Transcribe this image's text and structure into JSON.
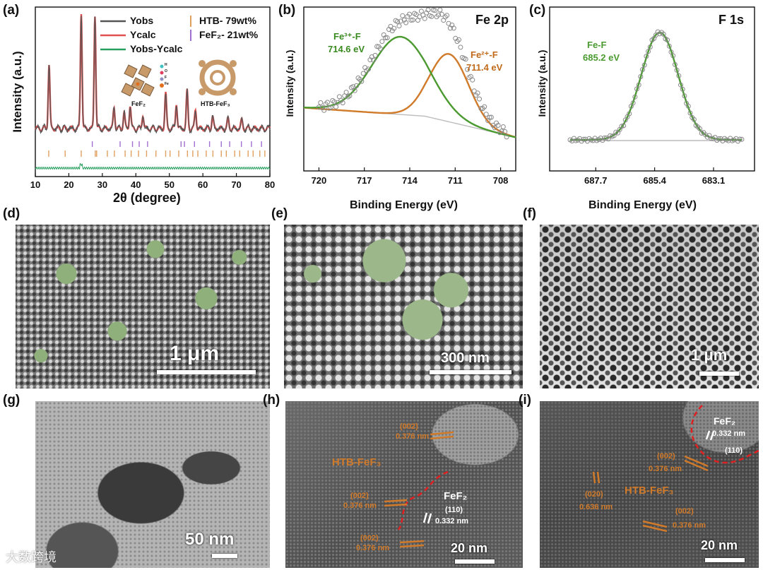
{
  "panels": {
    "a": {
      "label": "(a)",
      "ylabel": "Intensity (a.u.)",
      "xlabel": "2θ (degree)",
      "xticks": [
        "10",
        "20",
        "30",
        "40",
        "50",
        "60",
        "70",
        "80"
      ],
      "legend": {
        "yobs": "Yobs",
        "ycalc": "Ycalc",
        "diff": "Yobs-Ycalc",
        "htb": "HTB- 79wt%",
        "fef2": "FeF₂- 21wt%"
      },
      "struct_labels": {
        "fef2": "FeF₂",
        "htb": "HTB-FeF₃"
      },
      "atom_legend": [
        "H",
        "O",
        "F",
        "Fe"
      ]
    },
    "b": {
      "label": "(b)",
      "title": "Fe 2p",
      "ylabel": "Intensity (a.u.)",
      "xlabel": "Binding Energy (eV)",
      "xticks": [
        "720",
        "717",
        "714",
        "711",
        "708"
      ],
      "peak1_name": "Fe³⁺-F",
      "peak1_energy": "714.6 eV",
      "peak2_name": "Fe²⁺-F",
      "peak2_energy": "711.4 eV"
    },
    "c": {
      "label": "(c)",
      "title": "F 1s",
      "ylabel": "Intensity (a.u.)",
      "xlabel": "Binding Energy (eV)",
      "xticks": [
        "687.7",
        "685.4",
        "683.1"
      ],
      "peak_name": "Fe-F",
      "peak_energy": "685.2 eV"
    },
    "d": {
      "label": "(d)",
      "scale": "1 μm"
    },
    "e": {
      "label": "(e)",
      "scale": "300 nm"
    },
    "f": {
      "label": "(f)",
      "scale": "1 μm"
    },
    "g": {
      "label": "(g)",
      "scale": "50 nm"
    },
    "h": {
      "label": "(h)",
      "scale": "20 nm",
      "htb": "HTB-FeF₃",
      "fef2": "FeF₂",
      "plane002": "(002)",
      "d0376": "0.376 nm",
      "plane110": "(110)",
      "d0332": "0.332 nm"
    },
    "i": {
      "label": "(i)",
      "scale": "20 nm",
      "htb": "HTB-FeF₃",
      "fef2": "FeF₂",
      "plane002": "(002)",
      "plane020": "(020)",
      "plane110": "(110)",
      "d0376": "0.376 nm",
      "d0332": "0.332 nm",
      "d0636": "0.636 nm"
    }
  },
  "watermark": "大数跨境",
  "chart_data": [
    {
      "type": "line",
      "panel": "a",
      "xlabel": "2θ (degree)",
      "ylabel": "Intensity (a.u.)",
      "xlim": [
        10,
        80
      ],
      "series": [
        {
          "name": "Yobs",
          "color": "#555555"
        },
        {
          "name": "Ycalc",
          "color": "#e05050"
        },
        {
          "name": "Yobs-Ycalc",
          "color": "#2aa060"
        }
      ],
      "peaks_2theta": [
        14.1,
        23.7,
        27.8,
        33.5,
        36.5,
        38.3,
        42.1,
        48.9,
        52.1,
        55.3,
        57.8,
        62.9,
        67.5,
        71.6
      ],
      "peak_rel_intensity": [
        0.55,
        1.0,
        0.98,
        0.18,
        0.14,
        0.2,
        0.12,
        0.3,
        0.22,
        0.32,
        0.16,
        0.1,
        0.08,
        0.07
      ],
      "htb_ticks": [
        14.0,
        18.9,
        23.7,
        27.9,
        28.3,
        31.5,
        33.6,
        36.8,
        38.6,
        40.8,
        43.2,
        46.0,
        48.9,
        50.2,
        52.8,
        55.4,
        57.0,
        58.5,
        61.0,
        63.0,
        65.5,
        67.0,
        69.5,
        71.0,
        73.5,
        75.0,
        77.0,
        78.5
      ],
      "fef2_ticks": [
        27.0,
        35.3,
        39.0,
        41.0,
        43.5,
        53.5,
        54.5,
        57.5,
        62.0,
        65.5,
        68.0,
        71.5,
        74.5,
        77.5
      ]
    },
    {
      "type": "line",
      "panel": "b",
      "xlabel": "Binding Energy (eV)",
      "ylabel": "Intensity (a.u.)",
      "xlim": [
        721,
        707
      ],
      "series": [
        {
          "name": "Fe³⁺-F",
          "center": 714.6,
          "color": "#4a9a30"
        },
        {
          "name": "Fe²⁺-F",
          "center": 711.4,
          "color": "#d07a2a"
        }
      ]
    },
    {
      "type": "line",
      "panel": "c",
      "xlabel": "Binding Energy (eV)",
      "ylabel": "Intensity (a.u.)",
      "xlim": [
        689.5,
        681.5
      ],
      "series": [
        {
          "name": "Fe-F",
          "center": 685.2,
          "color": "#4a9a30"
        }
      ]
    }
  ]
}
